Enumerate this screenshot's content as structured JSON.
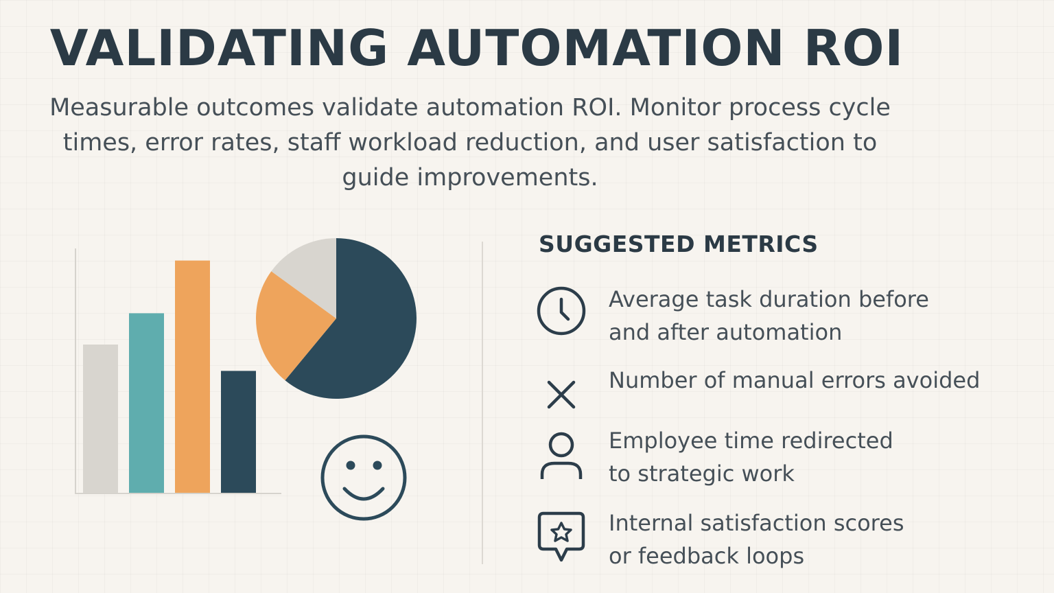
{
  "header": {
    "title": "VALIDATING AUTOMATION ROI",
    "subtitle": "Measurable outcomes validate automation ROI. Monitor process cycle times, error rates, staff workload reduction, and user satisfaction to guide improvements."
  },
  "illustration": {
    "bar_chart": {
      "values": [
        180,
        218,
        282,
        148
      ],
      "max": 300,
      "colors": [
        "#d8d5cf",
        "#5fadae",
        "#eea45c",
        "#2c4a5a"
      ]
    },
    "pie_chart": {
      "values": [
        61,
        24,
        15
      ],
      "colors": [
        "#2c4a5a",
        "#eea45c",
        "#d8d5cf"
      ]
    },
    "smiley_icon": "smiley-face-icon"
  },
  "metrics": {
    "heading": "SUGGESTED METRICS",
    "items": [
      {
        "icon": "clock-icon",
        "line1": "Average task duration before",
        "line2": "and after automation"
      },
      {
        "icon": "x-icon",
        "line1": "Number of manual errors avoided",
        "line2": ""
      },
      {
        "icon": "person-icon",
        "line1": "Employee time redirected",
        "line2": "to strategic work"
      },
      {
        "icon": "star-badge-icon",
        "line1": "Internal satisfaction scores",
        "line2": "or feedback loops"
      }
    ]
  },
  "colors": {
    "primary": "#2b3a45",
    "text": "#454f57",
    "background": "#f7f4ef"
  }
}
